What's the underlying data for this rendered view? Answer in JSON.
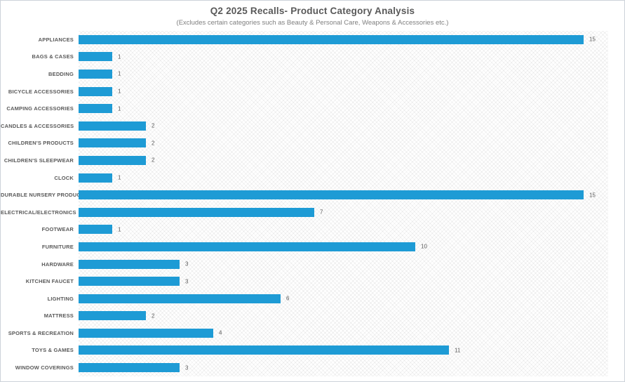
{
  "chart_data": {
    "type": "bar",
    "orientation": "horizontal",
    "title": "Q2 2025 Recalls- Product Category Analysis",
    "subtitle": "(Excludes certain categories such as Beauty & Personal Care, Weapons & Accessories etc.)",
    "categories": [
      "APPLIANCES",
      "BAGS & CASES",
      "BEDDING",
      "BICYCLE ACCESSORIES",
      "CAMPING ACCESSORIES",
      "CANDLES & ACCESSORIES",
      "CHILDREN'S PRODUCTS",
      "CHILDREN'S SLEEPWEAR",
      "CLOCK",
      "DURABLE NURSERY PRODUCT",
      "ELECTRICAL/ELECTRONICS",
      "FOOTWEAR",
      "FURNITURE",
      "HARDWARE",
      "KITCHEN FAUCET",
      "LIGHTING",
      "MATTRESS",
      "SPORTS & RECREATION",
      "TOYS & GAMES",
      "WINDOW COVERINGS"
    ],
    "values": [
      15,
      1,
      1,
      1,
      1,
      2,
      2,
      2,
      1,
      15,
      7,
      1,
      10,
      3,
      3,
      6,
      2,
      4,
      11,
      3
    ],
    "xlabel": "",
    "ylabel": "",
    "xlim": [
      0,
      15.7
    ],
    "grid": false,
    "legend": "none",
    "value_labels": true,
    "bar_color": "#1e9bd5",
    "label_color": "#595959",
    "plot_pattern": "diagonal-crosshatch"
  }
}
